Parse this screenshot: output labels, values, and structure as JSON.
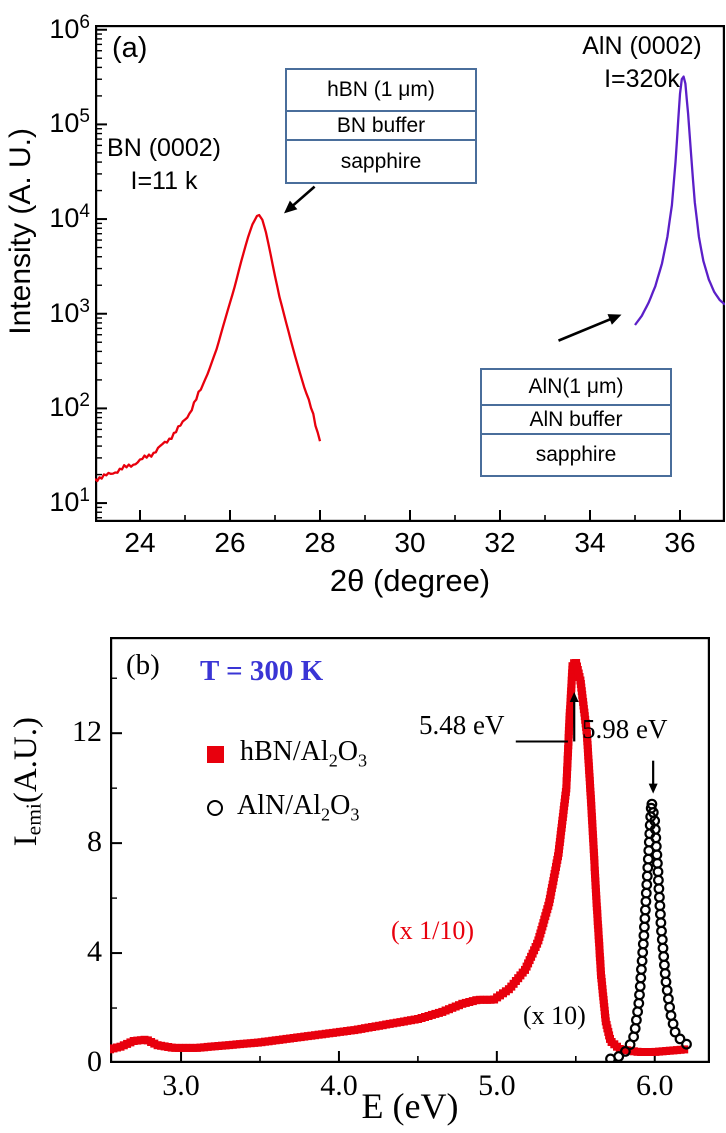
{
  "figure": {
    "background": "#ffffff"
  },
  "chart_data": [
    {
      "panel": "a",
      "type": "line",
      "panel_label": "(a)",
      "xlabel": "2θ (degree)",
      "ylabel": "Intensity (A. U.)",
      "x_range": [
        23,
        37
      ],
      "x_ticks": [
        24,
        26,
        28,
        30,
        32,
        34,
        36
      ],
      "x_minor_ticks": [
        25,
        27,
        29,
        31,
        33,
        35
      ],
      "y_scale": "log",
      "y_exp_range": [
        0.8,
        6.05
      ],
      "y_tick_exponents": [
        1,
        2,
        3,
        4,
        5,
        6
      ],
      "frame_color": "#000000",
      "box_color": "#4a6e9b",
      "series": [
        {
          "name": "BN (0002)",
          "color": "#e8000d",
          "annotation": "BN (0002)\nI=11 k",
          "points": [
            [
              23.0,
              18
            ],
            [
              23.2,
              19
            ],
            [
              23.4,
              21
            ],
            [
              23.7,
              24
            ],
            [
              24.0,
              28
            ],
            [
              24.3,
              34
            ],
            [
              24.6,
              45
            ],
            [
              24.9,
              65
            ],
            [
              25.1,
              90
            ],
            [
              25.3,
              140
            ],
            [
              25.5,
              230
            ],
            [
              25.7,
              420
            ],
            [
              25.9,
              900
            ],
            [
              26.1,
              1900
            ],
            [
              26.25,
              3600
            ],
            [
              26.4,
              6400
            ],
            [
              26.5,
              8800
            ],
            [
              26.6,
              10800
            ],
            [
              26.65,
              11000
            ],
            [
              26.72,
              9800
            ],
            [
              26.8,
              7200
            ],
            [
              26.9,
              4300
            ],
            [
              27.0,
              2500
            ],
            [
              27.1,
              1500
            ],
            [
              27.25,
              800
            ],
            [
              27.4,
              430
            ],
            [
              27.55,
              240
            ],
            [
              27.7,
              140
            ],
            [
              27.85,
              85
            ],
            [
              28.0,
              45
            ]
          ]
        },
        {
          "name": "AlN (0002)",
          "color": "#5b1fc8",
          "annotation": "AlN (0002)\nI=320k",
          "points": [
            [
              35.0,
              760
            ],
            [
              35.15,
              950
            ],
            [
              35.3,
              1300
            ],
            [
              35.45,
              1950
            ],
            [
              35.6,
              3400
            ],
            [
              35.72,
              6500
            ],
            [
              35.82,
              14000
            ],
            [
              35.9,
              40000
            ],
            [
              35.96,
              110000
            ],
            [
              36.0,
              210000
            ],
            [
              36.04,
              300000
            ],
            [
              36.08,
              320000
            ],
            [
              36.12,
              270000
            ],
            [
              36.18,
              130000
            ],
            [
              36.25,
              45000
            ],
            [
              36.33,
              15000
            ],
            [
              36.42,
              6500
            ],
            [
              36.52,
              3600
            ],
            [
              36.64,
              2300
            ],
            [
              36.76,
              1700
            ],
            [
              36.88,
              1400
            ],
            [
              37.0,
              1250
            ]
          ]
        }
      ],
      "arrows": [
        {
          "from": [
            27.88,
            22000
          ],
          "to": [
            27.2,
            11500
          ]
        },
        {
          "from": [
            33.3,
            520
          ],
          "to": [
            34.7,
            980
          ]
        }
      ],
      "insets": [
        {
          "name": "hbn-stack",
          "rows": [
            "hBN (1 μm)",
            "BN buffer",
            "sapphire"
          ]
        },
        {
          "name": "aln-stack",
          "rows": [
            "AlN(1 μm)",
            "AlN buffer",
            "sapphire"
          ]
        }
      ]
    },
    {
      "panel": "b",
      "type": "scatter",
      "panel_label": "(b)",
      "xlabel": "E (eV)",
      "ylabel": "I_{emi}(A.U.)",
      "x_range": [
        2.55,
        6.35
      ],
      "x_ticks": [
        3,
        4,
        5,
        6
      ],
      "x_tick_labels": [
        "3.0",
        "4.0",
        "5.0",
        "6.0"
      ],
      "x_minor_ticks": [
        3.5,
        4.5,
        5.5
      ],
      "y_range": [
        0,
        15.5
      ],
      "y_ticks": [
        0,
        4,
        8,
        12
      ],
      "y_minor_ticks": [
        2,
        6,
        10,
        14
      ],
      "temperature_label": "T = 300 K",
      "temperature_color": "#3a35d5",
      "legend": [
        {
          "label": "hBN/Al_{2}O_{3}",
          "marker": "filled-square",
          "color": "#e8000d"
        },
        {
          "label": "AlN/Al_{2}O_{3}",
          "marker": "open-circle",
          "color": "#000000"
        }
      ],
      "series": [
        {
          "name": "hBN/Al_{2}O_{3}",
          "marker": "square",
          "color": "#e8000d",
          "scale_note": "(x 1/10)",
          "peak_ev": 5.48,
          "points": [
            [
              2.55,
              0.5
            ],
            [
              2.62,
              0.6
            ],
            [
              2.7,
              0.8
            ],
            [
              2.78,
              0.85
            ],
            [
              2.85,
              0.65
            ],
            [
              2.95,
              0.55
            ],
            [
              3.1,
              0.55
            ],
            [
              3.3,
              0.65
            ],
            [
              3.5,
              0.75
            ],
            [
              3.7,
              0.9
            ],
            [
              3.9,
              1.05
            ],
            [
              4.1,
              1.2
            ],
            [
              4.3,
              1.4
            ],
            [
              4.5,
              1.6
            ],
            [
              4.65,
              1.85
            ],
            [
              4.78,
              2.15
            ],
            [
              4.88,
              2.3
            ],
            [
              4.98,
              2.3
            ],
            [
              5.08,
              2.7
            ],
            [
              5.18,
              3.4
            ],
            [
              5.26,
              4.4
            ],
            [
              5.33,
              5.8
            ],
            [
              5.39,
              7.6
            ],
            [
              5.44,
              10.0
            ],
            [
              5.46,
              12.5
            ],
            [
              5.48,
              14.5
            ],
            [
              5.5,
              14.6
            ],
            [
              5.53,
              13.9
            ],
            [
              5.57,
              12.0
            ],
            [
              5.6,
              9.2
            ],
            [
              5.63,
              6.0
            ],
            [
              5.66,
              3.2
            ],
            [
              5.69,
              1.5
            ],
            [
              5.72,
              0.8
            ],
            [
              5.78,
              0.5
            ],
            [
              5.9,
              0.4
            ],
            [
              6.0,
              0.4
            ],
            [
              6.1,
              0.45
            ],
            [
              6.2,
              0.5
            ]
          ]
        },
        {
          "name": "AlN/Al_{2}O_{3}",
          "marker": "open-circle",
          "color": "#000000",
          "scale_note": "(x 10)",
          "peak_ev": 5.98,
          "points": [
            [
              5.72,
              0.15
            ],
            [
              5.78,
              0.25
            ],
            [
              5.83,
              0.5
            ],
            [
              5.87,
              1.0
            ],
            [
              5.9,
              2.2
            ],
            [
              5.93,
              4.5
            ],
            [
              5.95,
              6.5
            ],
            [
              5.97,
              8.5
            ],
            [
              5.98,
              9.5
            ],
            [
              6.0,
              8.8
            ],
            [
              6.02,
              7.0
            ],
            [
              6.04,
              5.0
            ],
            [
              6.07,
              3.0
            ],
            [
              6.1,
              1.8
            ],
            [
              6.13,
              1.1
            ],
            [
              6.17,
              0.8
            ],
            [
              6.21,
              0.65
            ]
          ]
        }
      ],
      "annotations": [
        {
          "text": "5.48 eV",
          "connector": {
            "x1": 5.12,
            "x2": 5.45,
            "y": 11.7
          },
          "arrow": {
            "x": 5.49,
            "from_y": 11.7,
            "to_y": 13.5
          }
        },
        {
          "text": "5.98 eV",
          "arrow": {
            "x": 5.99,
            "from_y": 11.0,
            "to_y": 9.8
          }
        }
      ]
    }
  ]
}
